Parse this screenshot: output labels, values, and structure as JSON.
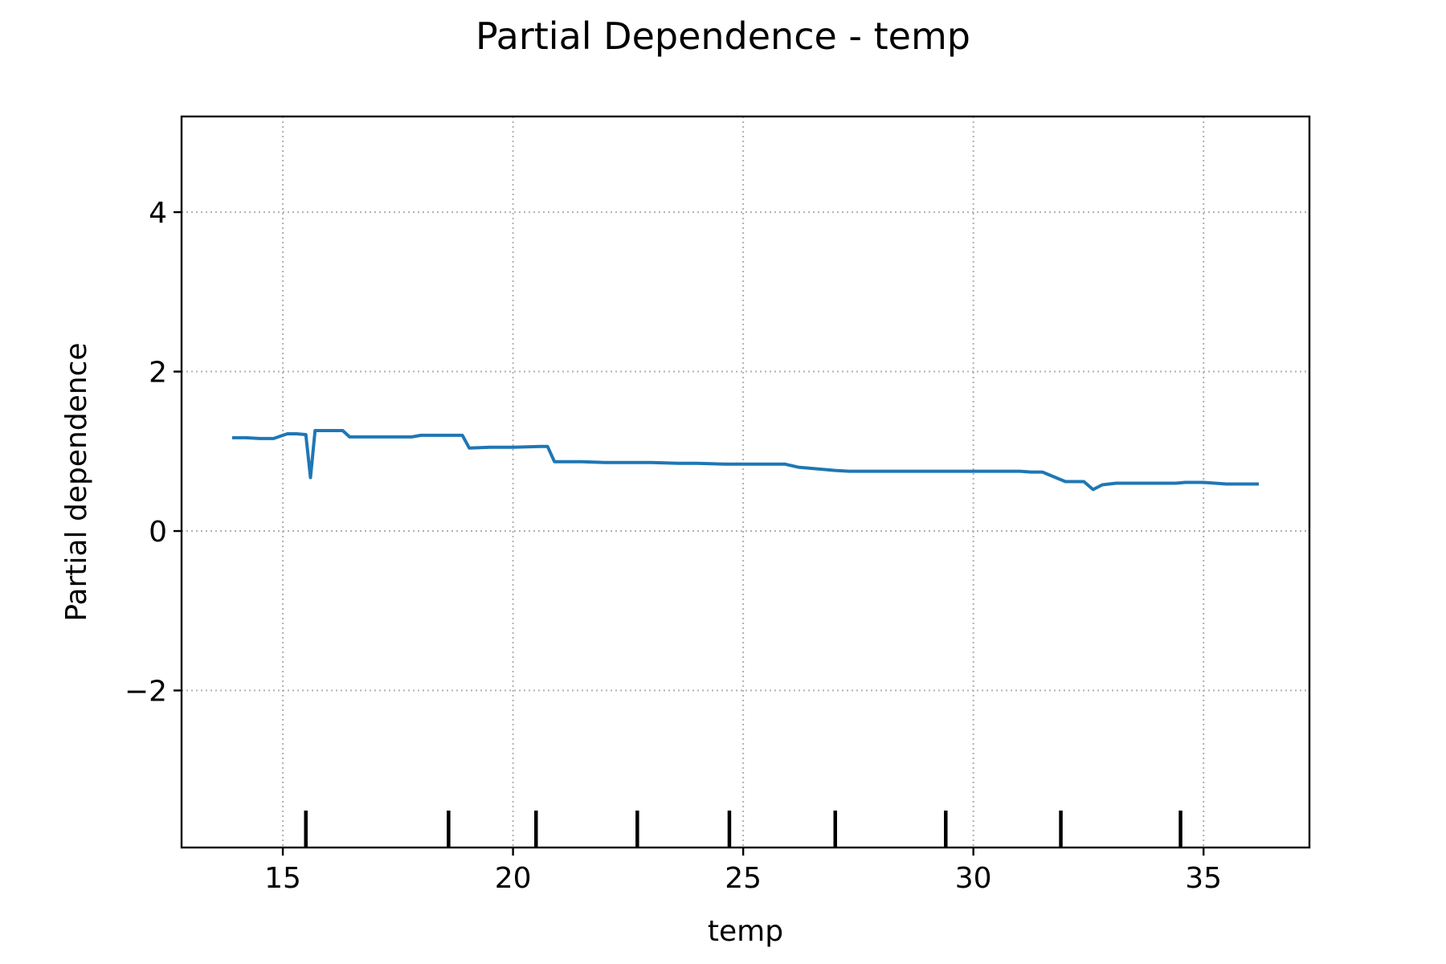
{
  "chart_data": {
    "type": "line",
    "title": "Partial Dependence - temp",
    "xlabel": "temp",
    "ylabel": "Partial dependence",
    "xlim": [
      12.8,
      37.3
    ],
    "ylim": [
      -3.97,
      5.2
    ],
    "xticks": [
      15,
      20,
      25,
      30,
      35
    ],
    "xtick_labels": [
      "15",
      "20",
      "25",
      "30",
      "35"
    ],
    "yticks": [
      -2,
      0,
      2,
      4
    ],
    "ytick_labels": [
      "−2",
      "0",
      "2",
      "4"
    ],
    "grid": true,
    "series": [
      {
        "color": "#1f77b4",
        "x": [
          13.9,
          14.2,
          14.5,
          14.8,
          15.0,
          15.1,
          15.3,
          15.5,
          15.6,
          15.7,
          15.85,
          16.0,
          16.3,
          16.45,
          16.8,
          17.4,
          17.8,
          18.0,
          18.5,
          18.9,
          19.05,
          19.5,
          20.0,
          20.6,
          20.75,
          20.9,
          21.5,
          22.0,
          23.0,
          23.6,
          24.0,
          24.6,
          25.0,
          25.5,
          25.9,
          26.2,
          26.6,
          27.0,
          27.3,
          28.0,
          29.0,
          30.0,
          31.0,
          31.25,
          31.5,
          32.0,
          32.4,
          32.6,
          32.8,
          33.1,
          33.5,
          34.4,
          34.6,
          35.0,
          35.5,
          36.2
        ],
        "y": [
          1.17,
          1.17,
          1.16,
          1.16,
          1.2,
          1.22,
          1.22,
          1.21,
          0.67,
          1.26,
          1.26,
          1.26,
          1.26,
          1.18,
          1.18,
          1.18,
          1.18,
          1.2,
          1.2,
          1.2,
          1.04,
          1.05,
          1.05,
          1.06,
          1.06,
          0.87,
          0.87,
          0.86,
          0.86,
          0.85,
          0.85,
          0.84,
          0.84,
          0.84,
          0.84,
          0.8,
          0.78,
          0.76,
          0.75,
          0.75,
          0.75,
          0.75,
          0.75,
          0.74,
          0.74,
          0.62,
          0.62,
          0.52,
          0.58,
          0.6,
          0.6,
          0.6,
          0.61,
          0.61,
          0.59,
          0.59
        ]
      }
    ],
    "rug": [
      15.5,
      18.6,
      20.5,
      22.7,
      24.7,
      27.0,
      29.4,
      31.9,
      34.5
    ]
  }
}
